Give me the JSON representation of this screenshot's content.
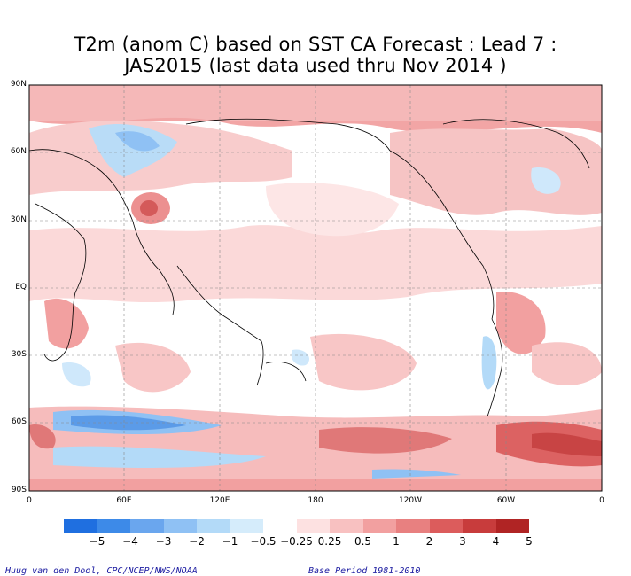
{
  "title": {
    "line1": "T2m (anom C) based on SST CA Forecast : Lead 7 :",
    "line2": "JAS2015 (last data used thru Nov 2014 )"
  },
  "axes": {
    "lat_labels": [
      "90N",
      "60N",
      "30N",
      "EQ",
      "30S",
      "60S",
      "90S"
    ],
    "lon_labels": [
      "0",
      "60E",
      "120E",
      "180",
      "120W",
      "60W",
      "0"
    ]
  },
  "colorbar": {
    "labels": [
      "−5",
      "−4",
      "−3",
      "−2",
      "−1",
      "−0.5",
      "−0.25",
      "0.25",
      "0.5",
      "1",
      "2",
      "3",
      "4",
      "5"
    ],
    "colors": [
      "#1f6fe0",
      "#3d8ae8",
      "#6aa6ee",
      "#8fc1f4",
      "#b3daf8",
      "#d5ecfb",
      "#ffffff",
      "#fde1e1",
      "#f8c1c1",
      "#f2a0a0",
      "#e88080",
      "#dc5c5c",
      "#c83c3c",
      "#b02424"
    ]
  },
  "footer": {
    "left": "Huug van den Dool, CPC/NCEP/NWS/NOAA",
    "right": "Base Period 1981-2010"
  }
}
